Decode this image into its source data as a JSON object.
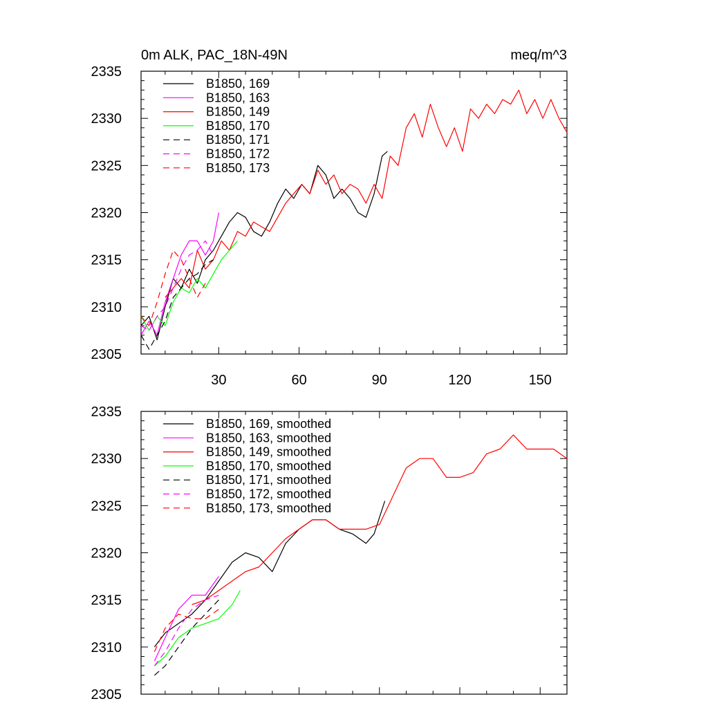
{
  "colors": {
    "black": "#000000",
    "magenta": "#ff00ff",
    "red": "#ff0000",
    "green": "#00ff00"
  },
  "chart_data": [
    {
      "type": "line",
      "title": "0m ALK, PAC_18N-49N",
      "units": "meq/m^3",
      "xlabel": "",
      "ylabel": "",
      "xlim": [
        1,
        160
      ],
      "ylim": [
        2305,
        2335
      ],
      "x_ticks": [
        30,
        60,
        90,
        120,
        150
      ],
      "x_tick_labels": [
        "30",
        "60",
        "90",
        "120",
        "150"
      ],
      "y_ticks": [
        2305,
        2310,
        2315,
        2320,
        2325,
        2330,
        2335
      ],
      "y_tick_labels": [
        "2305",
        "2310",
        "2315",
        "2320",
        "2325",
        "2330",
        "2335"
      ],
      "legend_position": "top-left",
      "series": [
        {
          "name": "B1850, 169",
          "color": "#000000",
          "dash": "solid",
          "x": [
            1,
            4,
            7,
            10,
            13,
            16,
            19,
            22,
            25,
            28,
            31,
            34,
            37,
            40,
            43,
            46,
            49,
            52,
            55,
            58,
            61,
            64,
            67,
            70,
            73,
            76,
            79,
            82,
            85,
            88,
            91,
            93
          ],
          "y": [
            2308,
            2309,
            2306.5,
            2310,
            2313,
            2312,
            2314,
            2312.5,
            2315,
            2316,
            2317.5,
            2319,
            2320,
            2319.5,
            2318,
            2317.5,
            2319,
            2321,
            2322.5,
            2321.5,
            2323,
            2322,
            2325,
            2324,
            2321.5,
            2322.5,
            2321.5,
            2320,
            2319.5,
            2322,
            2326,
            2326.5
          ]
        },
        {
          "name": "B1850, 163",
          "color": "#ff00ff",
          "dash": "solid",
          "x": [
            1,
            4,
            7,
            10,
            13,
            16,
            19,
            22,
            25,
            28,
            30
          ],
          "y": [
            2307,
            2308.5,
            2307,
            2310.5,
            2313,
            2315.5,
            2317,
            2317,
            2315.5,
            2317,
            2320
          ]
        },
        {
          "name": "B1850, 149",
          "color": "#ff0000",
          "dash": "solid",
          "x": [
            10,
            13,
            16,
            19,
            22,
            25,
            28,
            31,
            34,
            37,
            40,
            43,
            46,
            49,
            52,
            55,
            58,
            61,
            64,
            67,
            70,
            73,
            76,
            79,
            82,
            85,
            88,
            91,
            94,
            97,
            100,
            103,
            106,
            109,
            112,
            115,
            118,
            121,
            124,
            127,
            130,
            133,
            136,
            139,
            142,
            145,
            148,
            151,
            154,
            157,
            160
          ],
          "y": [
            2311,
            2312,
            2313,
            2312,
            2316,
            2314,
            2315,
            2317,
            2316,
            2318,
            2317.5,
            2319,
            2318.5,
            2318,
            2319.5,
            2321,
            2322,
            2323,
            2322,
            2324.5,
            2323,
            2324,
            2322,
            2323,
            2322.5,
            2321,
            2323,
            2321.5,
            2326,
            2325,
            2329,
            2330.5,
            2328,
            2331.5,
            2329,
            2327,
            2329,
            2326.5,
            2331,
            2330,
            2331.5,
            2330.5,
            2332,
            2331.5,
            2333,
            2330.5,
            2332,
            2330,
            2332,
            2330,
            2328.5
          ]
        },
        {
          "name": "B1850, 170",
          "color": "#00ff00",
          "dash": "solid",
          "x": [
            1,
            4,
            7,
            10,
            13,
            16,
            19,
            22,
            25,
            28,
            31,
            34,
            37
          ],
          "y": [
            2309,
            2307.5,
            2309,
            2308,
            2310.5,
            2312,
            2311.5,
            2313,
            2312,
            2313.5,
            2315,
            2316,
            2317
          ]
        },
        {
          "name": "B1850, 171",
          "color": "#000000",
          "dash": "dash",
          "x": [
            1,
            4,
            7,
            10,
            13,
            16,
            19,
            22,
            25,
            28
          ],
          "y": [
            2307,
            2305.5,
            2307,
            2308.5,
            2311,
            2312,
            2313,
            2313.5,
            2314.5,
            2315
          ]
        },
        {
          "name": "B1850, 172",
          "color": "#ff00ff",
          "dash": "dash",
          "x": [
            1,
            4,
            7,
            10,
            13,
            16,
            19,
            22,
            25,
            28
          ],
          "y": [
            2308,
            2307.5,
            2309,
            2310,
            2312,
            2314,
            2315.5,
            2316,
            2317,
            2315.5
          ]
        },
        {
          "name": "B1850, 173",
          "color": "#ff0000",
          "dash": "dash",
          "x": [
            1,
            4,
            7,
            10,
            13,
            16,
            19,
            22,
            25
          ],
          "y": [
            2309,
            2308,
            2310.5,
            2313.5,
            2316,
            2315,
            2313,
            2311,
            2312.5
          ]
        }
      ]
    },
    {
      "type": "line",
      "title": "",
      "xlabel": "",
      "ylabel": "",
      "xlim": [
        1,
        160
      ],
      "ylim": [
        2305,
        2335
      ],
      "x_ticks": [
        30,
        60,
        90,
        120,
        150
      ],
      "y_ticks": [
        2305,
        2310,
        2315,
        2320,
        2325,
        2330,
        2335
      ],
      "y_tick_labels": [
        "2305",
        "2310",
        "2315",
        "2320",
        "2325",
        "2330",
        "2335"
      ],
      "legend_position": "top-left",
      "series": [
        {
          "name": "B1850, 169, smoothed",
          "color": "#000000",
          "dash": "solid",
          "x": [
            6,
            10,
            15,
            20,
            25,
            30,
            35,
            40,
            45,
            50,
            55,
            60,
            65,
            70,
            75,
            80,
            85,
            88,
            92
          ],
          "y": [
            2310,
            2311.5,
            2312.5,
            2313.5,
            2315,
            2317,
            2319,
            2320,
            2319.5,
            2318,
            2321,
            2322.5,
            2323.5,
            2323.5,
            2322.5,
            2322,
            2321,
            2322,
            2325.5
          ]
        },
        {
          "name": "B1850, 163, smoothed",
          "color": "#ff00ff",
          "dash": "solid",
          "x": [
            6,
            10,
            15,
            20,
            25,
            30
          ],
          "y": [
            2308.5,
            2311,
            2314,
            2315.5,
            2315.5,
            2317.5
          ]
        },
        {
          "name": "B1850, 149, smoothed",
          "color": "#ff0000",
          "dash": "solid",
          "x": [
            20,
            25,
            30,
            35,
            40,
            45,
            50,
            55,
            60,
            65,
            70,
            75,
            80,
            85,
            90,
            95,
            100,
            105,
            110,
            115,
            120,
            125,
            130,
            135,
            140,
            145,
            150,
            155,
            160
          ],
          "y": [
            2314.5,
            2315,
            2316,
            2317,
            2318,
            2318.5,
            2320,
            2321.5,
            2322.5,
            2323.5,
            2323.5,
            2322.5,
            2322.5,
            2322.5,
            2323,
            2326,
            2329,
            2330,
            2330,
            2328,
            2328,
            2328.5,
            2330.5,
            2331,
            2332.5,
            2331,
            2331,
            2331,
            2330
          ]
        },
        {
          "name": "B1850, 170, smoothed",
          "color": "#00ff00",
          "dash": "solid",
          "x": [
            6,
            10,
            15,
            20,
            25,
            30,
            35,
            38
          ],
          "y": [
            2308,
            2309,
            2311,
            2312,
            2312.5,
            2313,
            2314.5,
            2316
          ]
        },
        {
          "name": "B1850, 171, smoothed",
          "color": "#000000",
          "dash": "dash",
          "x": [
            6,
            10,
            15,
            20,
            25,
            30
          ],
          "y": [
            2307,
            2308,
            2310,
            2312,
            2313.5,
            2315
          ]
        },
        {
          "name": "B1850, 172, smoothed",
          "color": "#ff00ff",
          "dash": "dash",
          "x": [
            6,
            10,
            15,
            20,
            25,
            30
          ],
          "y": [
            2308,
            2309.5,
            2312,
            2314,
            2315,
            2315.5
          ]
        },
        {
          "name": "B1850, 173, smoothed",
          "color": "#ff0000",
          "dash": "dash",
          "x": [
            6,
            10,
            15,
            20,
            25,
            30
          ],
          "y": [
            2309.5,
            2312,
            2313.5,
            2313,
            2313,
            2314
          ]
        }
      ]
    }
  ]
}
